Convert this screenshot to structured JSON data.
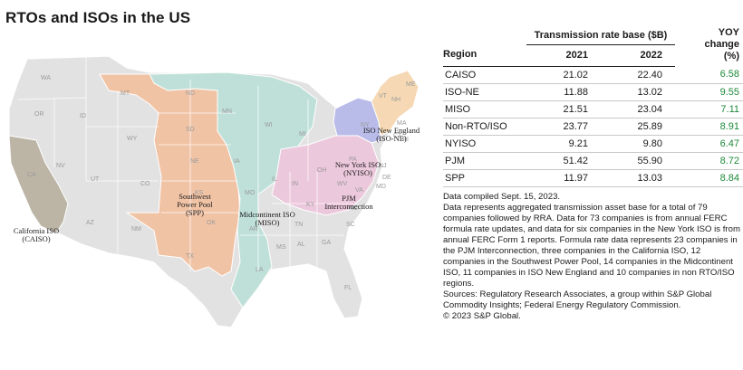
{
  "title": "RTOs and ISOs in the US",
  "map": {
    "regions": [
      {
        "key": "caiso",
        "label_lines": [
          "California ISO",
          "(CAISO)"
        ],
        "color": "#bcb5a6"
      },
      {
        "key": "spp",
        "label_lines": [
          "Southwest",
          "Power Pool",
          "(SPP)"
        ],
        "color": "#f1c3a5"
      },
      {
        "key": "miso",
        "label_lines": [
          "Midcontinent ISO",
          "(MISO)"
        ],
        "color": "#bfe0d8"
      },
      {
        "key": "nyiso",
        "label_lines": [
          "New York ISO",
          "(NYISO)"
        ],
        "color": "#b9bce8"
      },
      {
        "key": "pjm",
        "label_lines": [
          "PJM",
          "Interconnection"
        ],
        "color": "#ecc8dc"
      },
      {
        "key": "isone",
        "label_lines": [
          "ISO New England",
          "(ISO-NE)"
        ],
        "color": "#f6d9b4"
      },
      {
        "key": "nonrto",
        "label_lines": [],
        "color": "#e2e2e2"
      }
    ],
    "state_abbreviations": [
      "WA",
      "OR",
      "CA",
      "NV",
      "ID",
      "MT",
      "WY",
      "UT",
      "AZ",
      "CO",
      "NM",
      "ND",
      "SD",
      "NE",
      "KS",
      "OK",
      "TX",
      "MN",
      "IA",
      "MO",
      "AR",
      "LA",
      "WI",
      "IL",
      "MI",
      "IN",
      "KY",
      "TN",
      "MS",
      "AL",
      "GA",
      "FL",
      "SC",
      "NC",
      "VA",
      "WV",
      "OH",
      "PA",
      "NY",
      "VT",
      "NH",
      "ME",
      "MA",
      "CT",
      "RI",
      "NJ",
      "DE",
      "MD"
    ]
  },
  "chart_data": {
    "type": "table",
    "columns": [
      "Region",
      "2021",
      "2022",
      "YOY change (%)"
    ],
    "group_header": "Transmission rate base ($B)",
    "yoy_header_lines": [
      "YOY",
      "change",
      "(%)"
    ],
    "region_header": "Region",
    "years": [
      "2021",
      "2022"
    ],
    "rows": [
      {
        "region": "CAISO",
        "v2021": "21.02",
        "v2022": "22.40",
        "yoy": "6.58"
      },
      {
        "region": "ISO-NE",
        "v2021": "11.88",
        "v2022": "13.02",
        "yoy": "9.55"
      },
      {
        "region": "MISO",
        "v2021": "21.51",
        "v2022": "23.04",
        "yoy": "7.11"
      },
      {
        "region": "Non-RTO/ISO",
        "v2021": "23.77",
        "v2022": "25.89",
        "yoy": "8.91"
      },
      {
        "region": "NYISO",
        "v2021": "9.21",
        "v2022": "9.80",
        "yoy": "6.47"
      },
      {
        "region": "PJM",
        "v2021": "51.42",
        "v2022": "55.90",
        "yoy": "8.72"
      },
      {
        "region": "SPP",
        "v2021": "11.97",
        "v2022": "13.03",
        "yoy": "8.84"
      }
    ],
    "colors": {
      "positive": "#1e8a3a"
    }
  },
  "notes": {
    "compiled": "Data compiled Sept. 15, 2023.",
    "description": "Data represents aggregated transmission asset base for a total of 79 companies followed by RRA.  Data for 73 companies is from annual FERC formula rate updates, and data for six companies in the New York ISO is from annual FERC Form 1 reports. Formula rate data represents 23 companies in the PJM Interconnection, three companies in the California ISO, 12 companies in the Southwest Power Pool, 14 companies in the Midcontinent ISO, 11 companies in ISO New England and 10 companies in non RTO/ISO regions.",
    "sources": "Sources: Regulatory Research Associates, a group within S&P Global Commodity Insights; Federal Energy Regulatory Commission.",
    "copyright": "© 2023 S&P Global."
  }
}
